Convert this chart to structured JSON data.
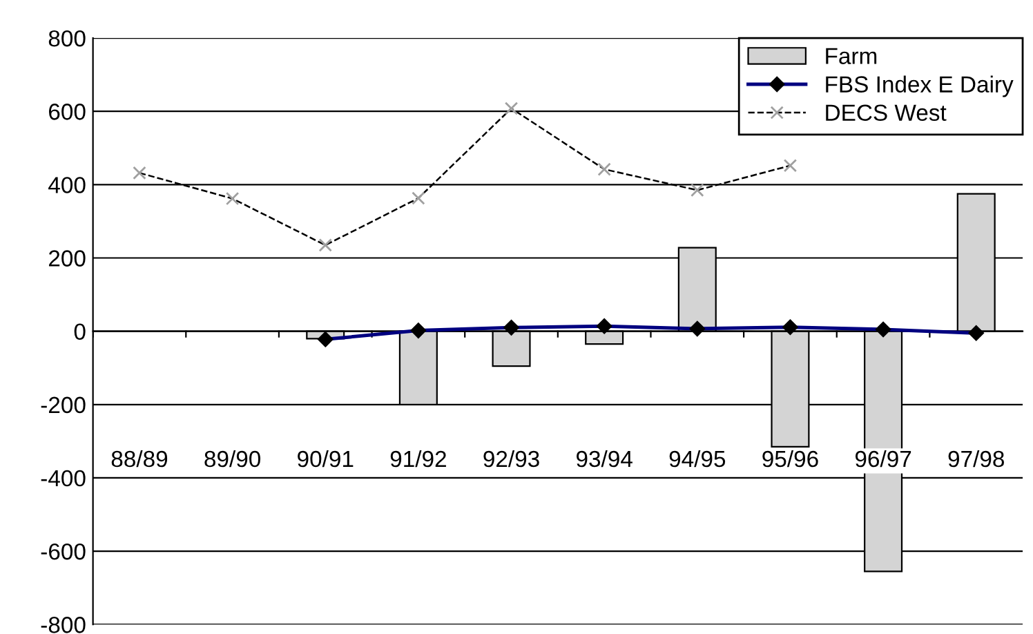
{
  "chart_data": {
    "type": "bar",
    "categories": [
      "88/89",
      "89/90",
      "90/91",
      "91/92",
      "92/93",
      "93/94",
      "94/95",
      "95/96",
      "96/97",
      "97/98"
    ],
    "series": [
      {
        "name": "Farm",
        "color": "#d4d4d4",
        "values": [
          null,
          null,
          -20,
          -200,
          -95,
          -35,
          228,
          -315,
          -655,
          375
        ]
      },
      {
        "name": "FBS Index E Dairy",
        "type": "line",
        "color": "#000080",
        "marker": "diamond",
        "line_style": "solid",
        "values": [
          null,
          null,
          -22,
          2,
          10,
          14,
          7,
          11,
          5,
          -5
        ]
      },
      {
        "name": "DECS West",
        "type": "line",
        "color": "#000000",
        "marker": "cross",
        "line_style": "dashed",
        "values": [
          432,
          362,
          235,
          363,
          608,
          442,
          385,
          452,
          null,
          null
        ]
      }
    ],
    "ylim": [
      -800,
      800
    ],
    "yticks": [
      -800,
      -600,
      -400,
      -200,
      0,
      200,
      400,
      600,
      800
    ],
    "grid": "y",
    "legend": "top right"
  }
}
